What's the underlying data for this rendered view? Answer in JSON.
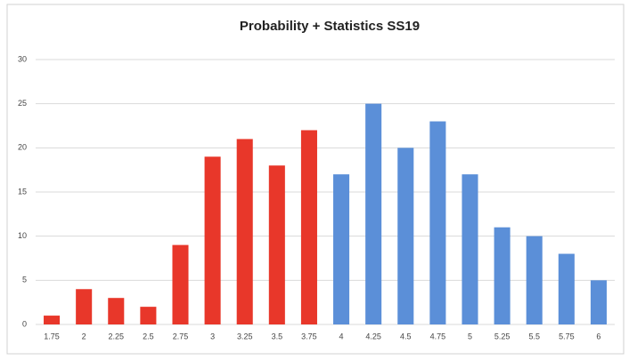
{
  "chart_data": {
    "type": "bar",
    "title": "Probability + Statistics SS19",
    "categories": [
      "1.75",
      "2",
      "2.25",
      "2.5",
      "2.75",
      "3",
      "3.25",
      "3.5",
      "3.75",
      "4",
      "4.25",
      "4.5",
      "4.75",
      "5",
      "5.25",
      "5.5",
      "5.75",
      "6"
    ],
    "values": [
      1,
      4,
      3,
      2,
      9,
      19,
      21,
      18,
      22,
      17,
      25,
      20,
      23,
      17,
      11,
      10,
      8,
      5
    ],
    "colors": [
      "#e8372a",
      "#e8372a",
      "#e8372a",
      "#e8372a",
      "#e8372a",
      "#e8372a",
      "#e8372a",
      "#e8372a",
      "#e8372a",
      "#5b8fd8",
      "#5b8fd8",
      "#5b8fd8",
      "#5b8fd8",
      "#5b8fd8",
      "#5b8fd8",
      "#5b8fd8",
      "#5b8fd8",
      "#5b8fd8"
    ],
    "ylim": [
      0,
      30
    ],
    "yticks": [
      0,
      5,
      10,
      15,
      20,
      25,
      30
    ],
    "grid": true
  }
}
